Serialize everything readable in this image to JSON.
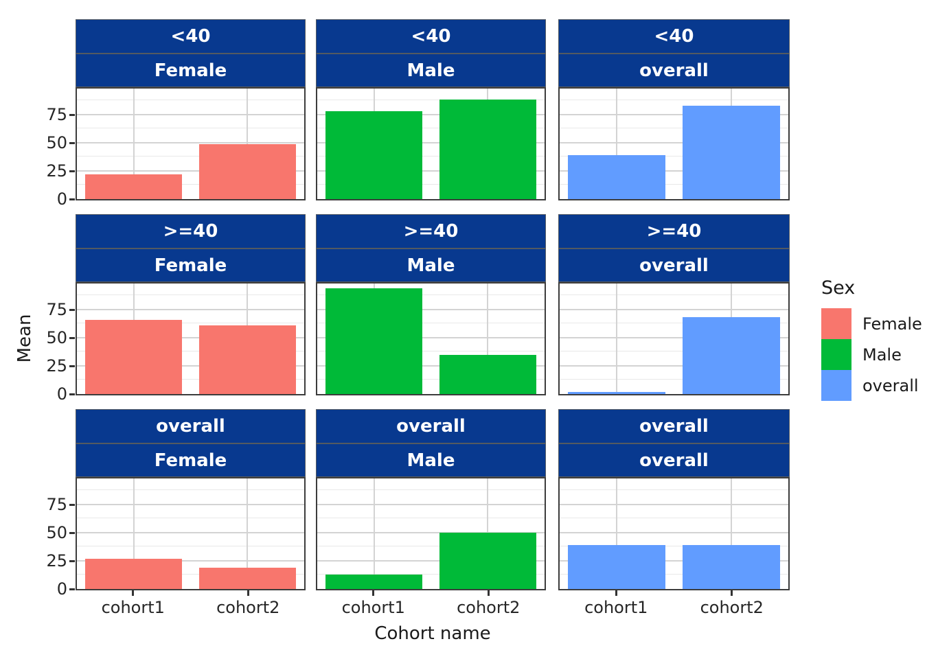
{
  "figure": {
    "background": "#FFFFFF"
  },
  "chart_data": {
    "type": "bar",
    "title": "",
    "xlabel": "Cohort name",
    "ylabel": "Mean",
    "categories": [
      "cohort1",
      "cohort2"
    ],
    "y_ticks": [
      0,
      25,
      50,
      75
    ],
    "ylim": [
      0,
      98
    ],
    "grid": true,
    "grid_minor": [
      12.5,
      37.5,
      62.5,
      87.5
    ],
    "grid_major": [
      25,
      50,
      75
    ],
    "facet_row_values": [
      "<40",
      ">=40",
      "overall"
    ],
    "facet_col_values": [
      "Female",
      "Male",
      "overall"
    ],
    "facets": [
      {
        "row": "<40",
        "col": "Female",
        "values": [
          22,
          49
        ]
      },
      {
        "row": "<40",
        "col": "Male",
        "values": [
          78,
          88
        ]
      },
      {
        "row": "<40",
        "col": "overall",
        "values": [
          39,
          83
        ]
      },
      {
        "row": ">=40",
        "col": "Female",
        "values": [
          66,
          61
        ]
      },
      {
        "row": ">=40",
        "col": "Male",
        "values": [
          94,
          35
        ]
      },
      {
        "row": ">=40",
        "col": "overall",
        "values": [
          2,
          68
        ]
      },
      {
        "row": "overall",
        "col": "Female",
        "values": [
          27,
          19
        ]
      },
      {
        "row": "overall",
        "col": "Male",
        "values": [
          13,
          50
        ]
      },
      {
        "row": "overall",
        "col": "overall",
        "values": [
          39,
          39
        ]
      }
    ],
    "colors": {
      "Female": "#F8766D",
      "Male": "#00BA38",
      "overall": "#619CFF"
    },
    "strip_color": "#08398F",
    "strip_text_color": "#FFFFFF",
    "legend": {
      "title": "Sex",
      "position": "right",
      "entries": [
        {
          "label": "Female",
          "color": "#F8766D"
        },
        {
          "label": "Male",
          "color": "#00BA38"
        },
        {
          "label": "overall",
          "color": "#619CFF"
        }
      ]
    }
  }
}
